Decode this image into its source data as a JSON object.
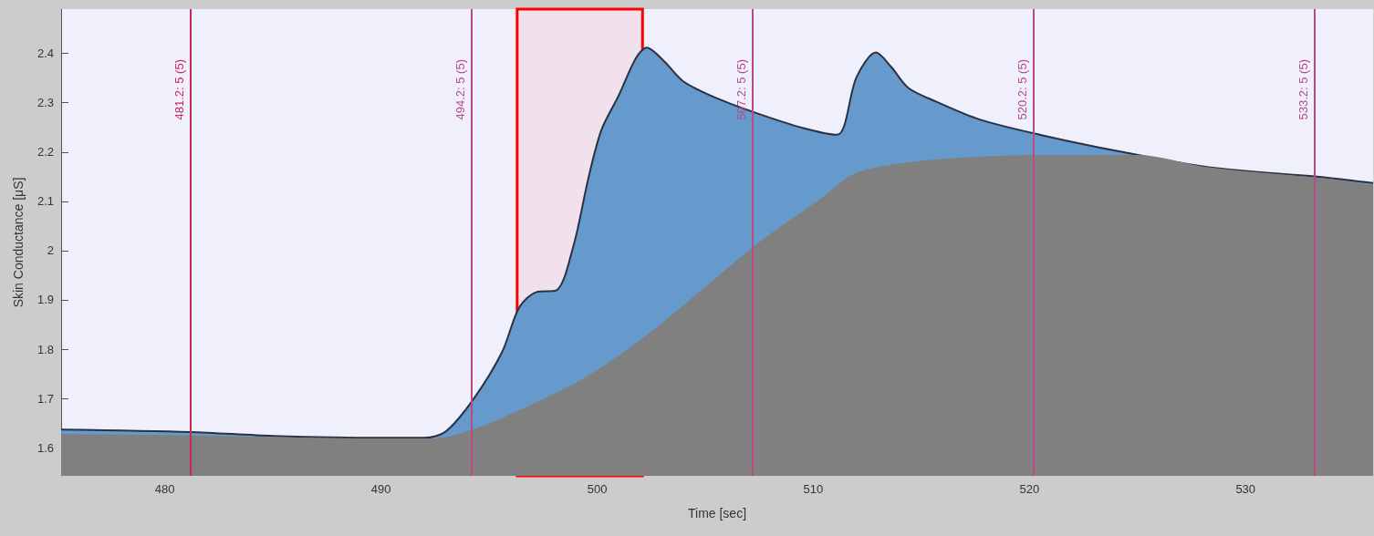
{
  "chart_data": {
    "type": "area",
    "xlabel": "Time [sec]",
    "ylabel": "Skin Conductance [μS]",
    "xlim": [
      475.2,
      535.9
    ],
    "xticks": [
      480,
      490,
      500,
      510,
      520,
      530
    ],
    "ylim": [
      1.543,
      2.49
    ],
    "yticks": [
      1.6,
      1.7,
      1.8,
      1.9,
      2,
      2.1,
      2.2,
      2.3,
      2.4
    ],
    "grid": false,
    "marker": "none",
    "series": [
      {
        "color": "#6699cc",
        "x": [
          475.2,
          481.2,
          485,
          490,
          492,
          493,
          494.3,
          495.6,
          496.4,
          497.2,
          498.1,
          498.9,
          499.6,
          500.2,
          501.0,
          501.8,
          502.3,
          503.1,
          504.0,
          505.6,
          507.5,
          509.5,
          511.1,
          512.0,
          512.9,
          513.6,
          514.4,
          515.7,
          517.7,
          520.6,
          524.2,
          528.3,
          533.8,
          535.9
        ],
        "values": [
          1.637,
          1.632,
          1.624,
          1.62,
          1.62,
          1.633,
          1.7,
          1.794,
          1.885,
          1.916,
          1.919,
          2.009,
          2.148,
          2.245,
          2.315,
          2.391,
          2.412,
          2.384,
          2.343,
          2.308,
          2.277,
          2.249,
          2.235,
          2.352,
          2.402,
          2.373,
          2.33,
          2.302,
          2.266,
          2.234,
          2.201,
          2.169,
          2.148,
          2.137
        ]
      },
      {
        "color": "#808080",
        "x": [
          475.2,
          481.2,
          490,
          492.5,
          494.3,
          496.4,
          499.3,
          502.1,
          504.8,
          507.5,
          510.3,
          512.0,
          515.2,
          520.6,
          525.0,
          528.3,
          533.8,
          535.9
        ],
        "values": [
          1.628,
          1.625,
          1.619,
          1.619,
          1.638,
          1.676,
          1.739,
          1.822,
          1.919,
          2.017,
          2.104,
          2.158,
          2.183,
          2.194,
          2.194,
          2.169,
          2.146,
          2.133
        ]
      }
    ],
    "ref_lines": [
      {
        "axis": "x",
        "value": 481.2,
        "label": "481.2: 5 (5)",
        "color": "#c8285a"
      },
      {
        "axis": "x",
        "value": 494.2,
        "label": "494.2: 5 (5)",
        "color": "#b84a84"
      },
      {
        "axis": "x",
        "value": 507.2,
        "label": "507.2: 5 (5)",
        "color": "#b84a84"
      },
      {
        "axis": "x",
        "value": 520.2,
        "label": "520.2: 5 (5)",
        "color": "#b84a84"
      },
      {
        "axis": "x",
        "value": 533.2,
        "label": "533.2: 5 (5)",
        "color": "#b84a84"
      }
    ],
    "bands": [
      {
        "axis": "x",
        "from": 496.3,
        "to": 502.1,
        "color": "#ff0000"
      }
    ]
  }
}
